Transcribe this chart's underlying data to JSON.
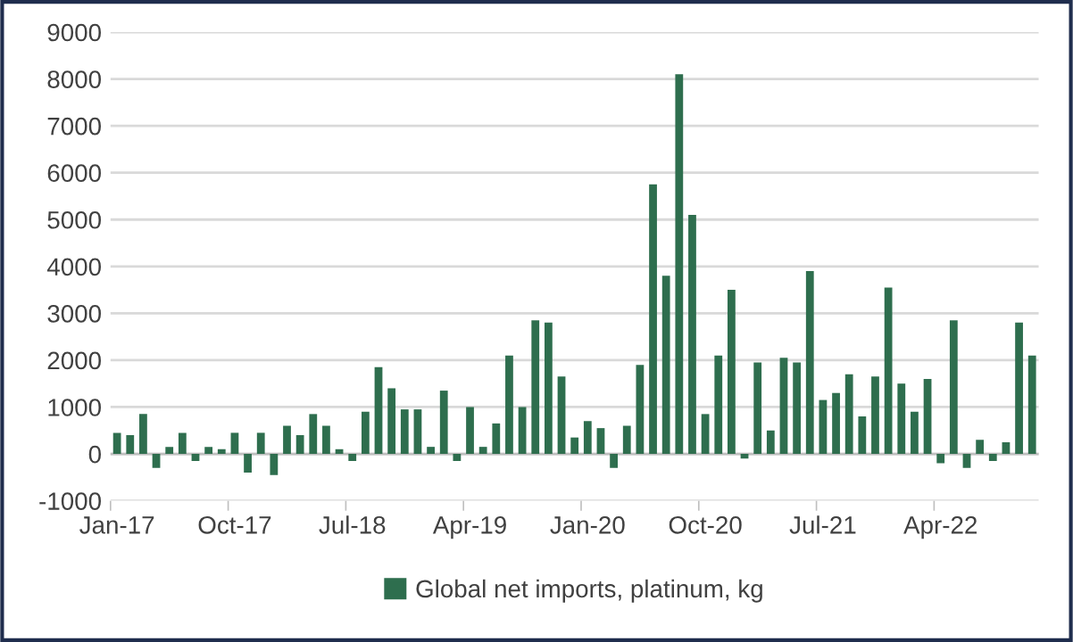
{
  "chart_data": {
    "type": "bar",
    "categories": [
      "Jan-17",
      null,
      null,
      null,
      null,
      null,
      null,
      null,
      null,
      "Oct-17",
      null,
      null,
      null,
      null,
      null,
      null,
      null,
      null,
      "Jul-18",
      null,
      null,
      null,
      null,
      null,
      null,
      null,
      null,
      "Apr-19",
      null,
      null,
      null,
      null,
      null,
      null,
      null,
      null,
      "Jan-20",
      null,
      null,
      null,
      null,
      null,
      null,
      null,
      null,
      "Oct-20",
      null,
      null,
      null,
      null,
      null,
      null,
      null,
      null,
      "Jul-21",
      null,
      null,
      null,
      null,
      null,
      null,
      null,
      null,
      "Apr-22",
      null,
      null,
      null,
      null,
      null,
      null,
      null
    ],
    "series": [
      {
        "name": "Global net imports, platinum, kg",
        "color": "#2e6e4e",
        "values": [
          450,
          400,
          850,
          -300,
          150,
          450,
          -150,
          150,
          100,
          450,
          -400,
          450,
          -450,
          600,
          400,
          850,
          600,
          100,
          -150,
          900,
          1850,
          1400,
          950,
          950,
          150,
          1350,
          -150,
          1000,
          150,
          650,
          2100,
          1000,
          2850,
          2800,
          1650,
          350,
          700,
          550,
          -300,
          600,
          1900,
          5750,
          3800,
          8100,
          5100,
          850,
          2100,
          3500,
          -100,
          1950,
          500,
          2050,
          1950,
          3900,
          1150,
          1300,
          1700,
          800,
          1650,
          3550,
          1500,
          900,
          1600,
          -200,
          2850,
          -300,
          300,
          -150,
          250,
          2800,
          2100
        ]
      }
    ],
    "ylim": [
      -1000,
      9000
    ],
    "yticks": [
      -1000,
      0,
      1000,
      2000,
      3000,
      4000,
      5000,
      6000,
      7000,
      8000,
      9000
    ],
    "grid": "y",
    "legend": "bottom"
  }
}
